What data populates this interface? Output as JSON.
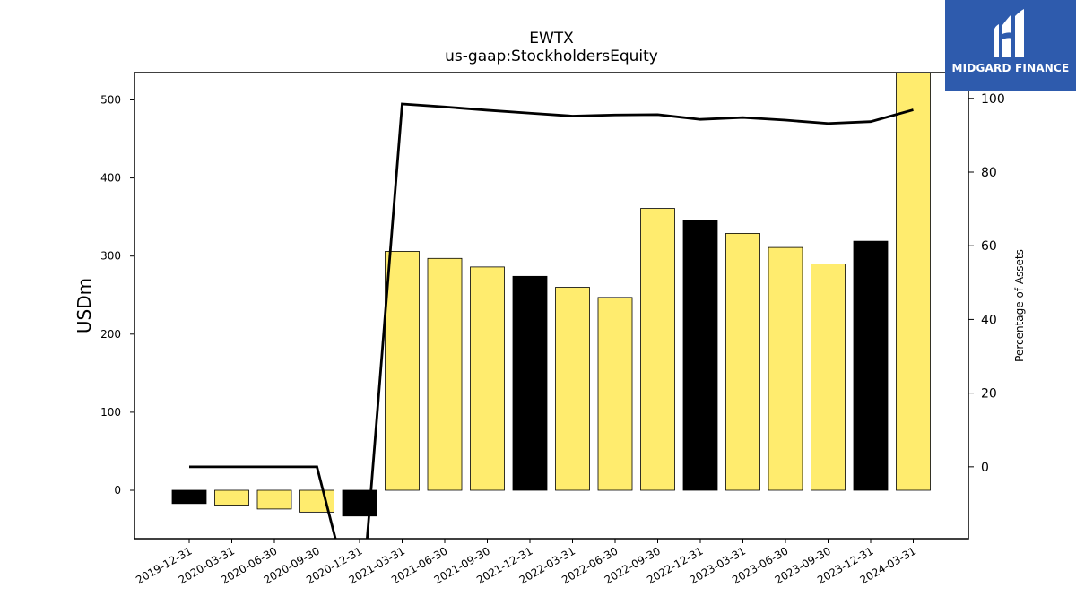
{
  "chart_data": {
    "type": "bar",
    "title": "EWTX",
    "subtitle": "us-gaap:StockholdersEquity",
    "ylabel": "USDm",
    "y2label": "Percentage of Assets",
    "ylim": [
      -62,
      535
    ],
    "y2lim": [
      -19.5,
      107
    ],
    "yticks": [
      0,
      100,
      200,
      300,
      400,
      500
    ],
    "y2ticks": [
      0,
      20,
      40,
      60,
      80,
      100
    ],
    "categories": [
      "2019-12-31",
      "2020-03-31",
      "2020-06-30",
      "2020-09-30",
      "2020-12-31",
      "2021-03-31",
      "2021-06-30",
      "2021-09-30",
      "2021-12-31",
      "2022-03-31",
      "2022-06-30",
      "2022-09-30",
      "2022-12-31",
      "2023-03-31",
      "2023-06-30",
      "2023-09-30",
      "2023-12-31",
      "2024-03-31"
    ],
    "values": [
      -17,
      -19,
      -24,
      -28,
      -33,
      306,
      297,
      286,
      274,
      260,
      247,
      361,
      346,
      329,
      311,
      290,
      319,
      553
    ],
    "bar_colors": [
      "#000000",
      "#ffec6e",
      "#ffec6e",
      "#ffec6e",
      "#000000",
      "#ffec6e",
      "#ffec6e",
      "#ffec6e",
      "#000000",
      "#ffec6e",
      "#ffec6e",
      "#ffec6e",
      "#000000",
      "#ffec6e",
      "#ffec6e",
      "#ffec6e",
      "#000000",
      "#ffec6e"
    ],
    "line_series": {
      "values": [
        0,
        0,
        0,
        0,
        -45,
        98.5,
        97.7,
        96.8,
        96.0,
        95.2,
        95.5,
        95.6,
        94.3,
        94.8,
        94.1,
        93.2,
        93.7,
        96.9
      ]
    },
    "grid": false
  },
  "logo": {
    "text": "MIDGARD FINANCE",
    "background": "#2e5bad"
  }
}
